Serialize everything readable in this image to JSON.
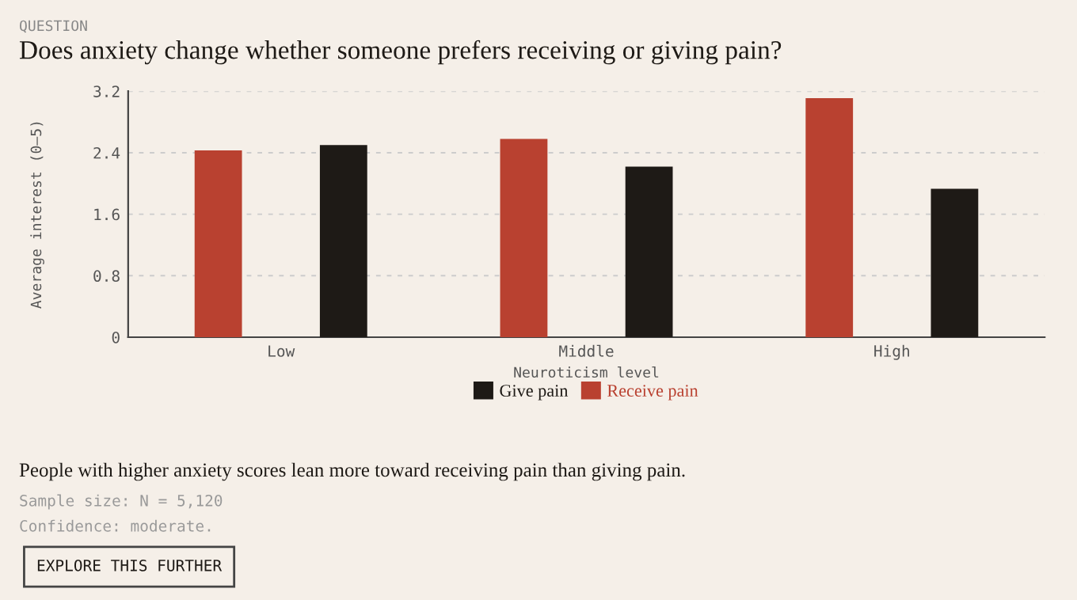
{
  "chart_data": {
    "type": "bar",
    "subtitle": "QUESTION",
    "title": "Does anxiety change whether someone prefers receiving or giving pain?",
    "categories": [
      "Low",
      "Middle",
      "High"
    ],
    "series": [
      {
        "name": "Receive pain",
        "color": "#b94130",
        "values": [
          2.43,
          2.58,
          3.11
        ]
      },
      {
        "name": "Give pain",
        "color": "#1e1a16",
        "values": [
          2.5,
          2.22,
          1.93
        ]
      }
    ],
    "xlabel": "Neuroticism level",
    "ylabel": "Average interest (0–5)",
    "ylim": [
      0,
      3.2
    ],
    "yticks": [
      0,
      0.8,
      1.6,
      2.4,
      3.2
    ],
    "grid": "y",
    "legend": "bottom",
    "annotations": [
      "People with higher anxiety scores lean more toward receiving pain than giving pain.",
      "Sample size: N = 5,120",
      "Confidence: moderate.",
      "EXPLORE THIS FURTHER"
    ]
  }
}
